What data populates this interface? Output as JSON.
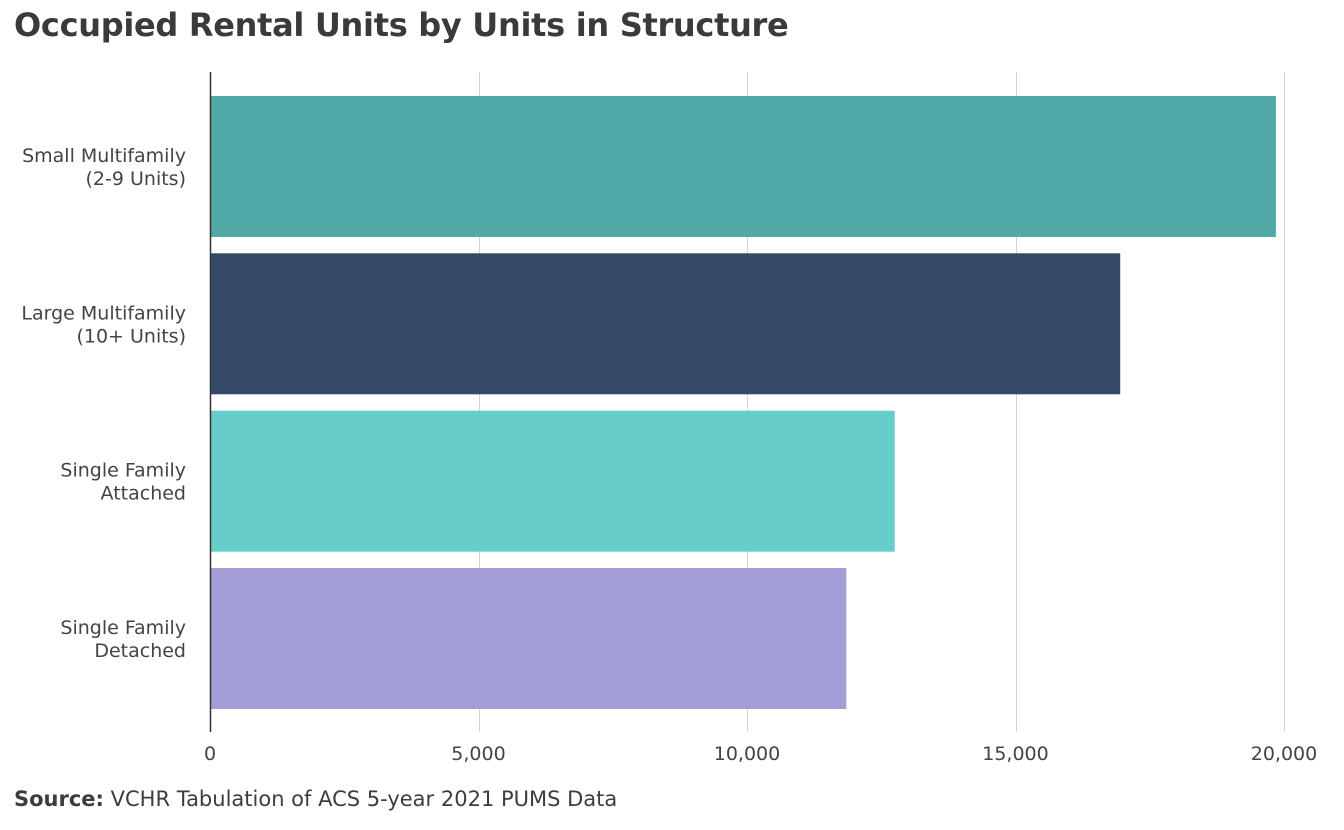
{
  "chart_data": {
    "type": "bar",
    "orientation": "horizontal",
    "title": "Occupied Rental Units by Units in Structure",
    "categories": [
      [
        "Small Multifamily",
        "(2-9 Units)"
      ],
      [
        "Large Multifamily",
        "(10+ Units)"
      ],
      [
        "Single Family",
        "Attached"
      ],
      [
        "Single Family",
        "Detached"
      ]
    ],
    "values": [
      19850,
      16950,
      12750,
      11850
    ],
    "colors": [
      "#51aaa8",
      "#354a67",
      "#66cdcb",
      "#a39fd6"
    ],
    "xlim": [
      0,
      20000
    ],
    "xticks": [
      0,
      5000,
      10000,
      15000,
      20000
    ],
    "xtick_labels": [
      "0",
      "5,000",
      "10,000",
      "15,000",
      "20,000"
    ],
    "xlabel": "",
    "ylabel": "",
    "grid": true
  },
  "source": {
    "label": "Source:",
    "text": " VCHR Tabulation of ACS 5-year 2021 PUMS Data"
  }
}
